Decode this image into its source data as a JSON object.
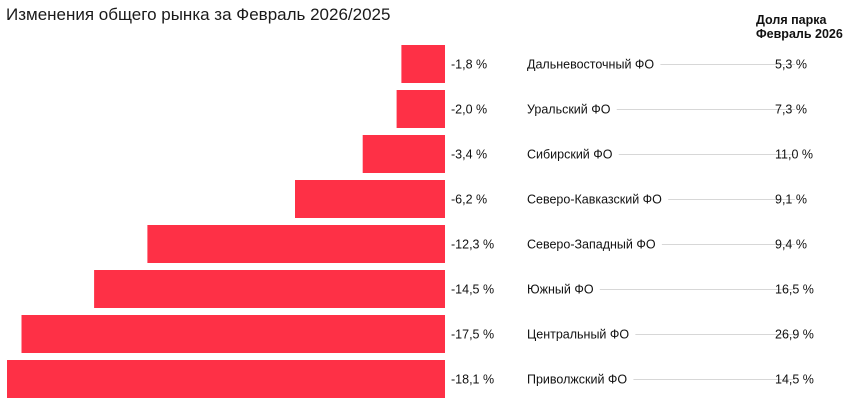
{
  "chart_data": {
    "type": "bar",
    "orientation": "horizontal",
    "title": "Изменения общего рынка за Февраль 2026/2025",
    "share_header_line1": "Доля парка",
    "share_header_line2": "Февраль 2026",
    "bar_color": "#fe3046",
    "xlim": [
      -18.1,
      0
    ],
    "categories": [
      "Дальневосточный ФО",
      "Уральский ФО",
      "Сибирский ФО",
      "Северо-Кавказский ФО",
      "Северо-Западный ФО",
      "Южный ФО",
      "Центральный ФО",
      "Приволжский ФО"
    ],
    "values": [
      -1.8,
      -2.0,
      -3.4,
      -6.2,
      -12.3,
      -14.5,
      -17.5,
      -18.1
    ],
    "value_labels": [
      "-1,8 %",
      "-2,0 %",
      "-3,4 %",
      "-6,2 %",
      "-12,3 %",
      "-14,5 %",
      "-17,5 %",
      "-18,1 %"
    ],
    "park_share": [
      5.3,
      7.3,
      11.0,
      9.1,
      9.4,
      16.5,
      26.9,
      14.5
    ],
    "park_share_labels": [
      "5,3 %",
      "7,3 %",
      "11,0 %",
      "9,1 %",
      "9,4 %",
      "16,5 %",
      "26,9 %",
      "14,5 %"
    ]
  }
}
